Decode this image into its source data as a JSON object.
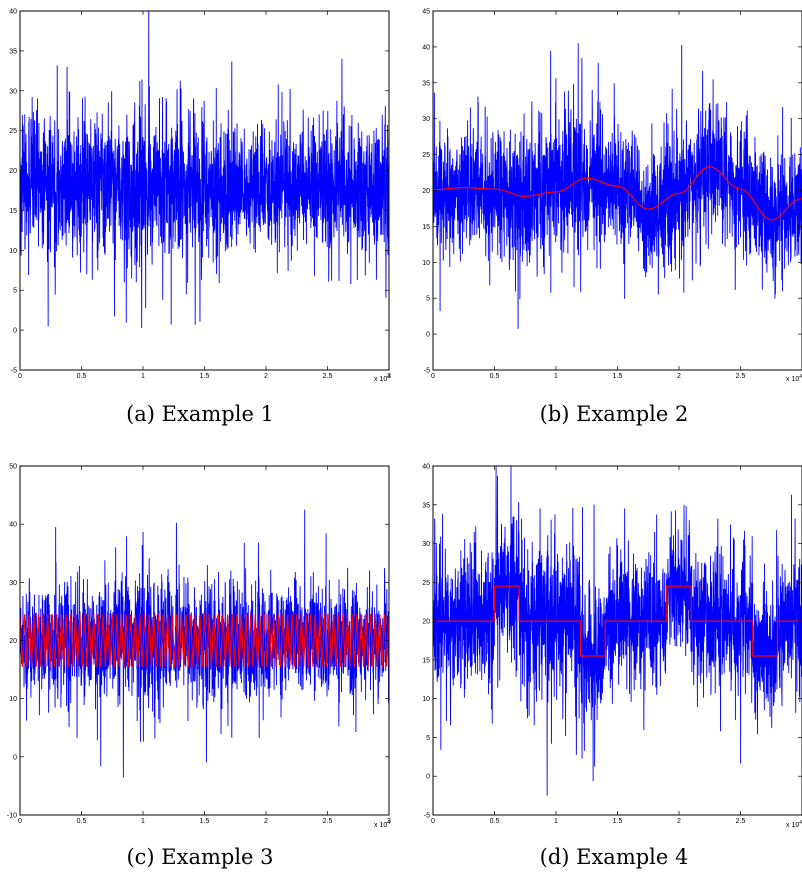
{
  "chart_data": [
    {
      "type": "line",
      "caption": "(a) Example 1",
      "xlim": [
        0,
        3
      ],
      "ylim": [
        -5,
        40
      ],
      "x_exponent_label": "x 10",
      "x_exponent_sup": "4",
      "xticks": [
        "0",
        "0.5",
        "1",
        "1.5",
        "2",
        "2.5",
        "3"
      ],
      "yticks": [
        "-5",
        "0",
        "5",
        "10",
        "15",
        "20",
        "25",
        "30",
        "35",
        "40"
      ],
      "series": [
        {
          "color": "#0000ff",
          "kind": "noisy signal",
          "base": 18,
          "spread": 7,
          "envelope": [
            [
              0,
              1.0
            ],
            [
              0.5,
              1.05
            ],
            [
              1.0,
              1.25
            ],
            [
              1.5,
              1.05
            ],
            [
              2.0,
              0.95
            ],
            [
              2.5,
              1.0
            ],
            [
              3.0,
              1.0
            ]
          ],
          "extremes": {
            "max": 40,
            "min": -2
          }
        }
      ]
    },
    {
      "type": "line",
      "caption": "(b) Example 2",
      "xlim": [
        0,
        3
      ],
      "ylim": [
        -5,
        45
      ],
      "x_exponent_label": "x 10",
      "x_exponent_sup": "4",
      "xticks": [
        "0",
        "0.5",
        "1",
        "1.5",
        "2",
        "2.5"
      ],
      "yticks": [
        "-5",
        "0",
        "5",
        "10",
        "15",
        "20",
        "25",
        "30",
        "35",
        "40",
        "45"
      ],
      "series": [
        {
          "color": "#0000ff",
          "kind": "noisy signal around red curve",
          "spread": 7,
          "envelope": [
            [
              0,
              1.0
            ],
            [
              1.0,
              1.25
            ],
            [
              1.5,
              1.0
            ],
            [
              2.0,
              1.15
            ],
            [
              2.5,
              1.1
            ],
            [
              3.0,
              1.05
            ]
          ],
          "extremes": {
            "max": 40.5,
            "min": -2.5
          }
        },
        {
          "color": "#ff0000",
          "kind": "mean curve",
          "x": [
            0,
            0.25,
            0.5,
            0.75,
            1.0,
            1.25,
            1.5,
            1.75,
            2.0,
            2.25,
            2.5,
            2.75,
            3.0
          ],
          "y": [
            20.1,
            20.4,
            20.2,
            19.2,
            19.8,
            21.7,
            20.6,
            17.4,
            19.6,
            23.3,
            20.2,
            15.9,
            18.9
          ]
        }
      ]
    },
    {
      "type": "line",
      "caption": "(c) Example 3",
      "xlim": [
        0,
        3
      ],
      "ylim": [
        -10,
        50
      ],
      "x_exponent_label": "x 10",
      "x_exponent_sup": "4",
      "xticks": [
        "0",
        "0.5",
        "1",
        "1.5",
        "2",
        "2.5",
        "3"
      ],
      "yticks": [
        "-10",
        "0",
        "10",
        "20",
        "30",
        "40",
        "50"
      ],
      "series": [
        {
          "color": "#0000ff",
          "kind": "noisy signal",
          "base": 20,
          "spread": 8,
          "envelope": [
            [
              0,
              1.0
            ],
            [
              1.0,
              1.15
            ],
            [
              1.5,
              1.1
            ],
            [
              2.0,
              1.0
            ],
            [
              3.0,
              1.0
            ]
          ],
          "extremes": {
            "max": 42.5,
            "min": -6.5
          }
        },
        {
          "color": "#ff0000",
          "kind": "square wave",
          "low": 15.5,
          "high": 24.5,
          "cycles": 80
        }
      ]
    },
    {
      "type": "line",
      "caption": "(d) Example 4",
      "xlim": [
        0,
        3
      ],
      "ylim": [
        -5,
        40
      ],
      "x_exponent_label": "x 10",
      "x_exponent_sup": "4",
      "xticks": [
        "0",
        "0.5",
        "1",
        "1.5",
        "2",
        "2.5"
      ],
      "yticks": [
        "-5",
        "0",
        "5",
        "10",
        "15",
        "20",
        "25",
        "30",
        "35",
        "40"
      ],
      "series": [
        {
          "color": "#0000ff",
          "kind": "noisy signal around red curve",
          "spread": 7,
          "envelope": [
            [
              0,
              1.0
            ],
            [
              1.0,
              1.25
            ],
            [
              1.5,
              1.0
            ],
            [
              2.0,
              1.1
            ],
            [
              3.0,
              1.05
            ]
          ],
          "extremes": {
            "max": 40,
            "min": -2.5
          }
        },
        {
          "color": "#ff0000",
          "kind": "piecewise-constant mean",
          "x": [
            0,
            0.5,
            0.5,
            0.7,
            0.7,
            1.2,
            1.2,
            1.4,
            1.4,
            1.9,
            1.9,
            2.1,
            2.1,
            2.6,
            2.6,
            2.8,
            2.8,
            3.0
          ],
          "y": [
            20,
            20,
            24.5,
            24.5,
            20,
            20,
            15.5,
            15.5,
            20,
            20,
            24.5,
            24.5,
            20,
            20,
            15.5,
            15.5,
            20,
            20
          ]
        }
      ]
    }
  ]
}
